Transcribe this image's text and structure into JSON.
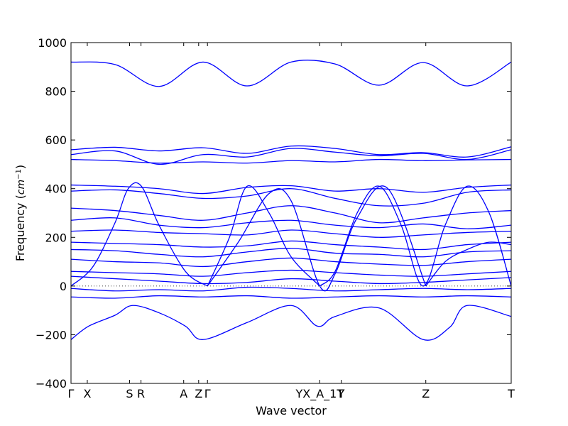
{
  "chart_data": {
    "type": "line",
    "title": "",
    "xlabel": "Wave vector",
    "ylabel": "Frequency (cm⁻¹)",
    "ylabel_main": "Frequency (",
    "ylabel_unit": "cm",
    "ylabel_exp": "−1",
    "ylabel_close": ")",
    "ylim": [
      -400,
      1000
    ],
    "xlim": [
      0,
      1
    ],
    "y_ticks": [
      -400,
      -200,
      0,
      200,
      400,
      600,
      800,
      1000
    ],
    "y_tick_labels": [
      "−400",
      "−200",
      "0",
      "200",
      "400",
      "600",
      "800",
      "1000"
    ],
    "x_ticks": [
      {
        "label": "Γ",
        "x": 0.0
      },
      {
        "label": "X",
        "x": 0.037
      },
      {
        "label": "S",
        "x": 0.133
      },
      {
        "label": "R",
        "x": 0.159
      },
      {
        "label": "A",
        "x": 0.256
      },
      {
        "label": "Z",
        "x": 0.29
      },
      {
        "label": "Γ",
        "x": 0.31
      },
      {
        "label": "YX_A_1T",
        "x": 0.565
      },
      {
        "label": "Y",
        "x": 0.614
      },
      {
        "label": "Z",
        "x": 0.806
      },
      {
        "label": "T",
        "x": 1.0
      }
    ],
    "line_color": "#0000ff",
    "zero_line": true,
    "grid": false,
    "legend": "none",
    "series": [
      {
        "x": [
          0,
          0.1,
          0.2,
          0.3,
          0.4,
          0.5,
          0.6,
          0.7,
          0.8,
          0.9,
          1
        ],
        "values": [
          920,
          910,
          820,
          920,
          822,
          920,
          912,
          825,
          918,
          822,
          920
        ]
      },
      {
        "x": [
          0,
          0.1,
          0.2,
          0.3,
          0.4,
          0.5,
          0.6,
          0.7,
          0.8,
          0.9,
          1
        ],
        "values": [
          560,
          570,
          555,
          568,
          545,
          575,
          565,
          540,
          548,
          530,
          572
        ]
      },
      {
        "x": [
          0,
          0.1,
          0.2,
          0.3,
          0.4,
          0.5,
          0.6,
          0.7,
          0.8,
          0.9,
          1
        ],
        "values": [
          540,
          555,
          500,
          540,
          530,
          565,
          550,
          535,
          545,
          520,
          560
        ]
      },
      {
        "x": [
          0,
          0.1,
          0.2,
          0.3,
          0.4,
          0.5,
          0.6,
          0.7,
          0.8,
          0.9,
          1
        ],
        "values": [
          520,
          515,
          505,
          510,
          505,
          515,
          510,
          520,
          515,
          518,
          520
        ]
      },
      {
        "x": [
          0,
          0.1,
          0.2,
          0.3,
          0.4,
          0.5,
          0.6,
          0.7,
          0.8,
          0.9,
          1
        ],
        "values": [
          415,
          410,
          400,
          380,
          405,
          412,
          390,
          400,
          385,
          405,
          415
        ]
      },
      {
        "x": [
          0,
          0.1,
          0.2,
          0.3,
          0.4,
          0.5,
          0.6,
          0.7,
          0.8,
          0.9,
          1
        ],
        "values": [
          390,
          395,
          380,
          360,
          370,
          400,
          360,
          330,
          340,
          385,
          395
        ]
      },
      {
        "x": [
          0,
          0.1,
          0.2,
          0.3,
          0.4,
          0.5,
          0.6,
          0.7,
          0.8,
          0.9,
          1
        ],
        "values": [
          320,
          310,
          290,
          270,
          300,
          330,
          300,
          260,
          280,
          300,
          310
        ]
      },
      {
        "x": [
          0,
          0.1,
          0.2,
          0.3,
          0.4,
          0.5,
          0.6,
          0.7,
          0.8,
          0.9,
          1
        ],
        "values": [
          270,
          280,
          250,
          240,
          260,
          270,
          250,
          240,
          255,
          235,
          250
        ]
      },
      {
        "x": [
          0,
          0.1,
          0.2,
          0.3,
          0.4,
          0.5,
          0.6,
          0.7,
          0.8,
          0.9,
          1
        ],
        "values": [
          225,
          230,
          220,
          215,
          210,
          230,
          215,
          200,
          210,
          220,
          225
        ]
      },
      {
        "x": [
          0,
          0.1,
          0.2,
          0.3,
          0.4,
          0.5,
          0.6,
          0.7,
          0.8,
          0.9,
          1
        ],
        "values": [
          180,
          175,
          170,
          160,
          165,
          185,
          170,
          160,
          150,
          170,
          180
        ]
      },
      {
        "x": [
          0,
          0.1,
          0.2,
          0.3,
          0.4,
          0.5,
          0.6,
          0.7,
          0.8,
          0.9,
          1
        ],
        "values": [
          150,
          145,
          130,
          120,
          140,
          155,
          135,
          130,
          120,
          140,
          145
        ]
      },
      {
        "x": [
          0,
          0.1,
          0.2,
          0.3,
          0.4,
          0.5,
          0.6,
          0.7,
          0.8,
          0.9,
          1
        ],
        "values": [
          110,
          100,
          95,
          80,
          100,
          115,
          100,
          90,
          85,
          100,
          110
        ]
      },
      {
        "x": [
          0,
          0.1,
          0.2,
          0.3,
          0.4,
          0.5,
          0.6,
          0.7,
          0.8,
          0.9,
          1
        ],
        "values": [
          60,
          55,
          50,
          40,
          55,
          65,
          55,
          45,
          40,
          50,
          60
        ]
      },
      {
        "x": [
          0,
          0.1,
          0.2,
          0.3,
          0.4,
          0.5,
          0.6,
          0.7,
          0.8,
          0.9,
          1
        ],
        "values": [
          40,
          30,
          20,
          10,
          15,
          30,
          20,
          10,
          15,
          25,
          35
        ]
      },
      {
        "x": [
          0,
          0.1,
          0.2,
          0.3,
          0.4,
          0.5,
          0.6,
          0.7,
          0.8,
          0.9,
          1
        ],
        "values": [
          -10,
          -20,
          -15,
          -20,
          -5,
          -10,
          -20,
          -15,
          -10,
          -15,
          -10
        ]
      },
      {
        "x": [
          0,
          0.1,
          0.2,
          0.3,
          0.4,
          0.5,
          0.6,
          0.7,
          0.8,
          0.9,
          1
        ],
        "values": [
          -45,
          -50,
          -40,
          -45,
          -40,
          -50,
          -45,
          -40,
          -45,
          -40,
          -45
        ]
      },
      {
        "x": [
          0,
          0.04,
          0.1,
          0.14,
          0.2,
          0.26,
          0.3,
          0.4,
          0.5,
          0.56,
          0.6,
          0.7,
          0.8,
          0.86,
          0.9,
          1
        ],
        "values": [
          -220,
          -165,
          -120,
          -80,
          -110,
          -165,
          -220,
          -150,
          -80,
          -165,
          -125,
          -90,
          -220,
          -170,
          -80,
          -125
        ]
      },
      {
        "x": [
          0,
          0.05,
          0.1,
          0.13,
          0.16,
          0.2,
          0.26,
          0.31
        ],
        "values": [
          0,
          80,
          260,
          400,
          410,
          250,
          60,
          0
        ]
      },
      {
        "x": [
          0.31,
          0.36,
          0.4,
          0.45,
          0.5,
          0.565
        ],
        "values": [
          0,
          200,
          410,
          300,
          120,
          0
        ]
      },
      {
        "x": [
          0.565,
          0.6,
          0.65,
          0.7,
          0.75,
          0.8,
          0.85,
          0.9,
          0.95,
          1
        ],
        "values": [
          0,
          60,
          300,
          410,
          250,
          0,
          250,
          410,
          300,
          0
        ]
      },
      {
        "x": [
          0.31,
          0.38,
          0.45,
          0.5,
          0.565,
          0.6,
          0.65,
          0.72,
          0.806
        ],
        "values": [
          0,
          180,
          380,
          350,
          0,
          50,
          280,
          400,
          0
        ]
      },
      {
        "x": [
          0.806,
          0.85,
          0.9,
          0.95,
          1
        ],
        "values": [
          0,
          100,
          150,
          180,
          170
        ]
      }
    ]
  }
}
